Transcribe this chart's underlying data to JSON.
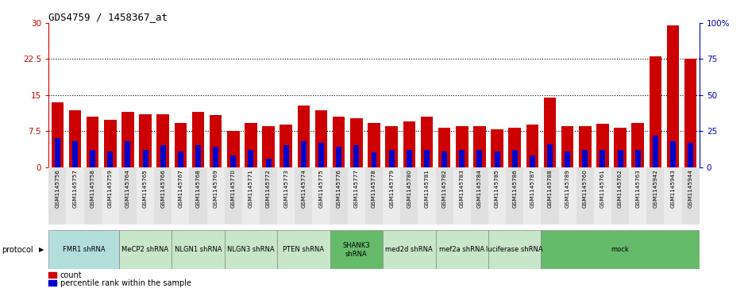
{
  "title": "GDS4759 / 1458367_at",
  "samples": [
    "GSM1145756",
    "GSM1145757",
    "GSM1145758",
    "GSM1145759",
    "GSM1145764",
    "GSM1145765",
    "GSM1145766",
    "GSM1145767",
    "GSM1145768",
    "GSM1145769",
    "GSM1145770",
    "GSM1145771",
    "GSM1145772",
    "GSM1145773",
    "GSM1145774",
    "GSM1145775",
    "GSM1145776",
    "GSM1145777",
    "GSM1145778",
    "GSM1145779",
    "GSM1145780",
    "GSM1145781",
    "GSM1145782",
    "GSM1145783",
    "GSM1145784",
    "GSM1145785",
    "GSM1145786",
    "GSM1145787",
    "GSM1145788",
    "GSM1145789",
    "GSM1145760",
    "GSM1145761",
    "GSM1145762",
    "GSM1145763",
    "GSM1145942",
    "GSM1145943",
    "GSM1145944"
  ],
  "counts": [
    13.5,
    11.8,
    10.5,
    9.8,
    11.5,
    11.0,
    11.0,
    9.2,
    11.5,
    10.8,
    7.5,
    9.2,
    8.5,
    8.8,
    12.8,
    11.8,
    10.5,
    10.2,
    9.2,
    8.5,
    9.5,
    10.5,
    8.2,
    8.5,
    8.5,
    7.8,
    8.2,
    8.8,
    14.5,
    8.5,
    8.5,
    9.0,
    8.2,
    9.2,
    23.0,
    29.5,
    22.5
  ],
  "percentile_pct": [
    20,
    18,
    12,
    11,
    18,
    12,
    15,
    11,
    15,
    14,
    8,
    12,
    6,
    15,
    18,
    17,
    14,
    15,
    10,
    12,
    12,
    12,
    11,
    12,
    12,
    11,
    12,
    8,
    16,
    11,
    12,
    12,
    12,
    12,
    22,
    18,
    17
  ],
  "protocols": [
    {
      "label": "FMR1 shRNA",
      "start": 0,
      "end": 4,
      "color": "#b2dfdb"
    },
    {
      "label": "MeCP2 shRNA",
      "start": 4,
      "end": 7,
      "color": "#c8e6c9"
    },
    {
      "label": "NLGN1 shRNA",
      "start": 7,
      "end": 10,
      "color": "#c8e6c9"
    },
    {
      "label": "NLGN3 shRNA",
      "start": 10,
      "end": 13,
      "color": "#c8e6c9"
    },
    {
      "label": "PTEN shRNA",
      "start": 13,
      "end": 16,
      "color": "#c8e6c9"
    },
    {
      "label": "SHANK3\nshRNA",
      "start": 16,
      "end": 19,
      "color": "#66bb6a"
    },
    {
      "label": "med2d shRNA",
      "start": 19,
      "end": 22,
      "color": "#c8e6c9"
    },
    {
      "label": "mef2a shRNA",
      "start": 22,
      "end": 25,
      "color": "#c8e6c9"
    },
    {
      "label": "luciferase shRNA",
      "start": 25,
      "end": 28,
      "color": "#c8e6c9"
    },
    {
      "label": "mock",
      "start": 28,
      "end": 37,
      "color": "#66bb6a"
    }
  ],
  "bar_color": "#cc0000",
  "percentile_color": "#0000cc",
  "background_color": "#ffffff",
  "left_axis_color": "#cc0000",
  "right_axis_color": "#0000bb",
  "ylim_left": [
    0,
    30
  ],
  "ylim_right": [
    0,
    100
  ],
  "yticks_left": [
    0,
    7.5,
    15,
    22.5,
    30
  ],
  "yticks_right": [
    0,
    25,
    50,
    75,
    100
  ],
  "grid_lines": [
    7.5,
    15,
    22.5
  ],
  "legend_count": "count",
  "legend_percentile": "percentile rank within the sample"
}
